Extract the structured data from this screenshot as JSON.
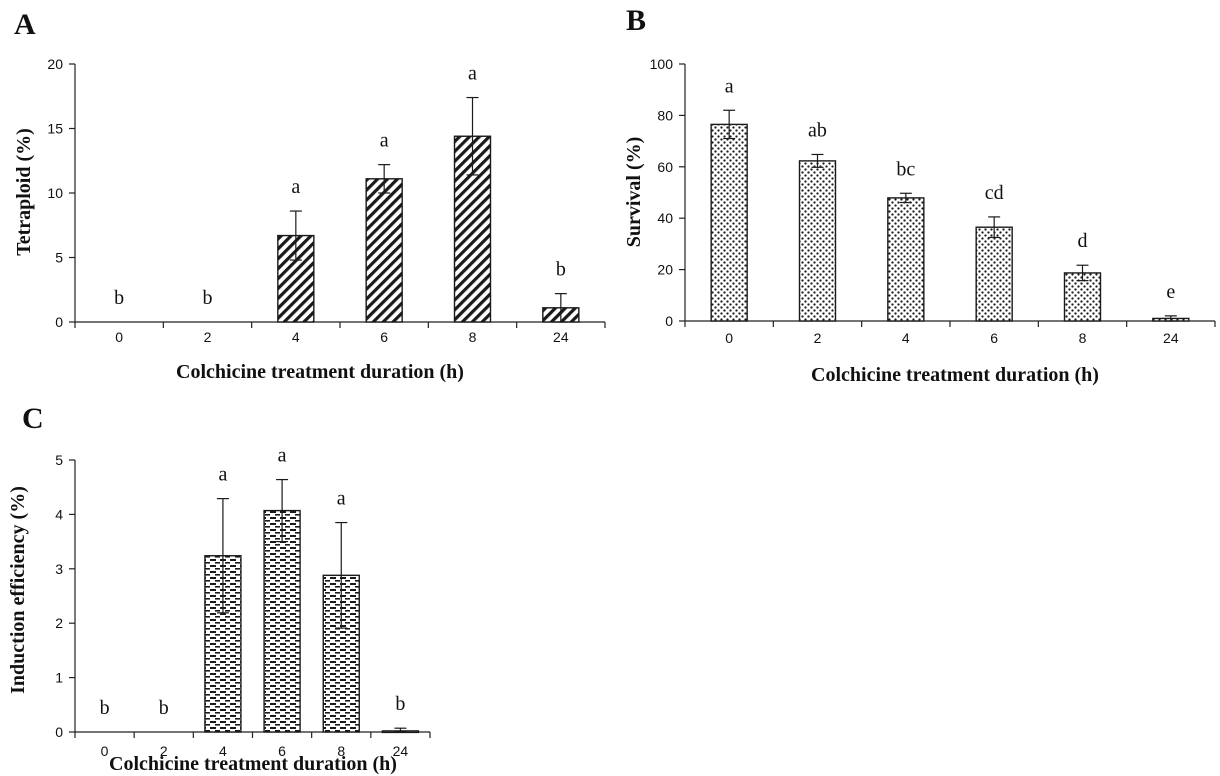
{
  "chart_data": [
    {
      "panel": "A",
      "type": "bar",
      "pattern": "diagonal-hatch",
      "categories": [
        "0",
        "2",
        "4",
        "6",
        "8",
        "24"
      ],
      "values": [
        0,
        0,
        6.7,
        11.1,
        14.4,
        1.1
      ],
      "errors": [
        0,
        0,
        1.9,
        1.1,
        3.0,
        1.1
      ],
      "significance": [
        "b",
        "b",
        "a",
        "a",
        "a",
        "b"
      ],
      "xlabel": "Colchicine treatment duration (h)",
      "ylabel": "Tetraploid (%)",
      "ylim": [
        0,
        20
      ],
      "yticks": [
        0,
        5,
        10,
        15,
        20
      ],
      "grid": false
    },
    {
      "panel": "B",
      "type": "bar",
      "pattern": "dots",
      "categories": [
        "0",
        "2",
        "4",
        "6",
        "8",
        "24"
      ],
      "values": [
        76.5,
        62.3,
        47.9,
        36.5,
        18.7,
        1.0
      ],
      "errors": [
        5.5,
        2.5,
        1.8,
        4.0,
        3.0,
        1.0
      ],
      "significance": [
        "a",
        "ab",
        "bc",
        "cd",
        "d",
        "e"
      ],
      "xlabel": "Colchicine treatment duration (h)",
      "ylabel": "Survival (%)",
      "ylim": [
        0,
        100
      ],
      "yticks": [
        0,
        20,
        40,
        60,
        80,
        100
      ],
      "grid": false
    },
    {
      "panel": "C",
      "type": "bar",
      "pattern": "dashes",
      "categories": [
        "0",
        "2",
        "4",
        "6",
        "8",
        "24"
      ],
      "values": [
        0,
        0,
        3.24,
        4.07,
        2.88,
        0.02
      ],
      "errors": [
        0,
        0,
        1.05,
        0.57,
        0.97,
        0.05
      ],
      "significance": [
        "b",
        "b",
        "a",
        "a",
        "a",
        "b"
      ],
      "xlabel": "Colchicine treatment duration (h)",
      "ylabel": "Induction efficiency (%)",
      "ylim": [
        0,
        5
      ],
      "yticks": [
        0,
        1,
        2,
        3,
        4,
        5
      ],
      "grid": false
    }
  ]
}
